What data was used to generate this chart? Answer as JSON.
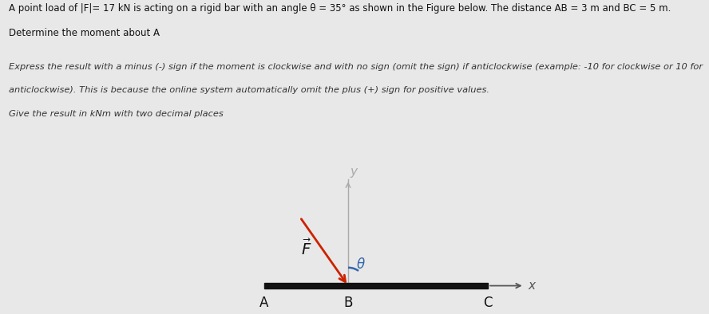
{
  "title_line1": "A point load of |F|= 17 kN is acting on a rigid bar with an angle θ = 35° as shown in the Figure below. The distance AB = 3 m and BC = 5 m.",
  "title_line2": "Determine the moment about A",
  "sub_line1": "Express the result with a minus (-) sign if the moment is clockwise and with no sign (omit the sign) if anticlockwise (example: -10 for clockwise or 10 for",
  "sub_line2": "anticlockwise). This is because the online system automatically omit the plus (+) sign for positive values.",
  "sub_line3": "Give the result in kNm with two decimal places",
  "F_magnitude": 17,
  "theta_deg": 35,
  "AB": 3,
  "BC": 5,
  "bar_color": "#111111",
  "force_color": "#cc2200",
  "yaxis_color": "#aaaaaa",
  "xaxis_color": "#555555",
  "angle_color": "#3366aa",
  "bg_color": "#e8e8e8",
  "text_color": "#111111",
  "italic_color": "#333333",
  "label_A": "A",
  "label_B": "B",
  "label_C": "C",
  "label_x": "x",
  "label_y": "y",
  "label_theta": "θ"
}
